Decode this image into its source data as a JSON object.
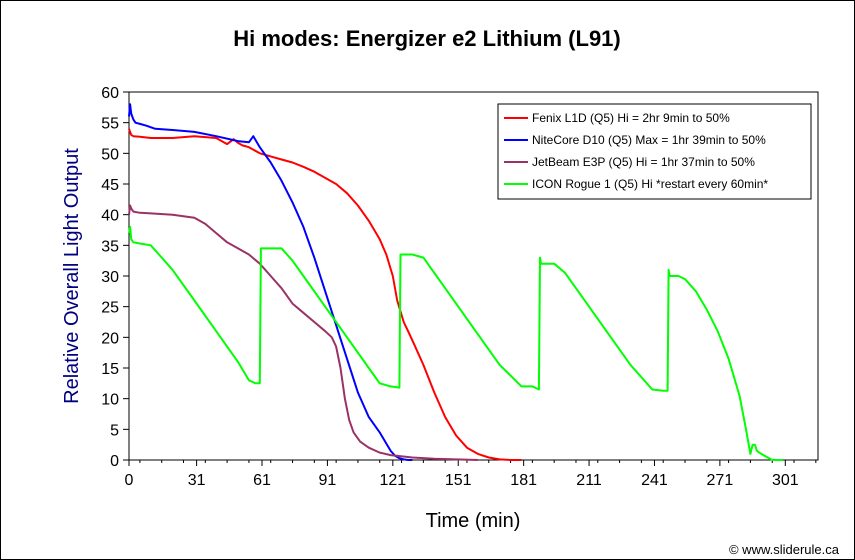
{
  "chart_data": {
    "type": "line",
    "title": "Hi modes: Energizer e2 Lithium (L91)",
    "xlabel": "Time (min)",
    "ylabel": "Relative Overall Light Output",
    "xlim": [
      0,
      316
    ],
    "ylim": [
      0,
      60
    ],
    "x_ticks": [
      "0",
      "31",
      "61",
      "91",
      "121",
      "151",
      "181",
      "211",
      "241",
      "271",
      "301"
    ],
    "y_ticks": [
      "0",
      "5",
      "10",
      "15",
      "20",
      "25",
      "30",
      "35",
      "40",
      "45",
      "50",
      "55",
      "60"
    ],
    "grid": false,
    "legend_position": "top-right",
    "credit": "© www.sliderule.ca",
    "series": [
      {
        "name": "Fenix L1D (Q5) Hi = 2hr 9min to 50%",
        "color": "#ff0000",
        "x": [
          0,
          1,
          2,
          5,
          10,
          20,
          30,
          40,
          45,
          48,
          50,
          52,
          55,
          60,
          65,
          70,
          75,
          80,
          85,
          90,
          95,
          100,
          105,
          110,
          115,
          118,
          121,
          123,
          126,
          128,
          130,
          135,
          140,
          145,
          150,
          155,
          160,
          165,
          170,
          175,
          180
        ],
        "y": [
          54.0,
          53.0,
          52.8,
          52.7,
          52.5,
          52.5,
          52.8,
          52.5,
          51.5,
          52.3,
          51.7,
          51.3,
          51.0,
          50.0,
          49.5,
          49.0,
          48.5,
          47.8,
          47.0,
          46.0,
          45.0,
          43.5,
          41.5,
          39.0,
          36.0,
          33.5,
          30.0,
          26.0,
          22.5,
          21.0,
          19.5,
          15.5,
          11.0,
          7.0,
          4.0,
          2.0,
          1.0,
          0.4,
          0.1,
          0.0,
          0.0
        ]
      },
      {
        "name": "NiteCore D10 (Q5) Max = 1hr 39min to 50%",
        "color": "#0000ff",
        "x": [
          0,
          0.5,
          1,
          2,
          3,
          5,
          8,
          12,
          20,
          30,
          40,
          50,
          55,
          57,
          60,
          65,
          70,
          75,
          80,
          85,
          90,
          95,
          100,
          105,
          110,
          115,
          120,
          122,
          124,
          126,
          128,
          130
        ],
        "y": [
          56.0,
          58.0,
          56.5,
          55.5,
          55.0,
          54.8,
          54.5,
          54.0,
          53.8,
          53.5,
          52.8,
          52.0,
          51.8,
          52.8,
          51.0,
          48.5,
          45.5,
          42.0,
          38.0,
          33.0,
          27.5,
          22.0,
          16.5,
          11.0,
          7.0,
          4.5,
          1.5,
          0.7,
          0.3,
          0.1,
          0.0,
          0.0
        ]
      },
      {
        "name": "JetBeam E3P (Q5) Hi = 1hr 37min to 50%",
        "color": "#993366",
        "x": [
          0,
          0.5,
          1,
          2,
          5,
          10,
          20,
          30,
          35,
          40,
          45,
          50,
          55,
          60,
          65,
          70,
          75,
          80,
          85,
          90,
          93,
          95,
          97,
          99,
          101,
          103,
          106,
          110,
          115,
          120,
          130,
          140,
          150,
          160
        ],
        "y": [
          40.0,
          41.5,
          41.0,
          40.5,
          40.3,
          40.2,
          40.0,
          39.5,
          38.5,
          37.0,
          35.5,
          34.5,
          33.5,
          32.0,
          30.0,
          28.0,
          25.5,
          24.0,
          22.5,
          21.0,
          20.0,
          18.5,
          15.0,
          10.0,
          6.5,
          4.5,
          3.0,
          2.0,
          1.2,
          0.8,
          0.4,
          0.2,
          0.1,
          0.0
        ]
      },
      {
        "name": "ICON Rogue 1 (Q5) Hi *restart every 60min*",
        "color": "#00ff00",
        "x": [
          0,
          0.5,
          1,
          2,
          5,
          10,
          20,
          30,
          40,
          50,
          55,
          58,
          60,
          60.5,
          61,
          62,
          65,
          70,
          75,
          80,
          90,
          100,
          110,
          115,
          120,
          124,
          124.5,
          125,
          128,
          130,
          135,
          140,
          150,
          160,
          170,
          180,
          185,
          188,
          188.5,
          189,
          192,
          195,
          200,
          210,
          220,
          230,
          240,
          245,
          247,
          247.5,
          248,
          252,
          255,
          260,
          265,
          270,
          275,
          280,
          283,
          285,
          286,
          287,
          287.5,
          288,
          290,
          295,
          300
        ],
        "y": [
          37.0,
          38.0,
          36.0,
          35.5,
          35.3,
          35.0,
          31.0,
          26.0,
          21.0,
          16.0,
          13.0,
          12.5,
          12.5,
          34.5,
          34.5,
          34.5,
          34.5,
          34.5,
          32.5,
          30.0,
          25.0,
          20.0,
          15.0,
          12.5,
          12.0,
          11.8,
          33.5,
          33.5,
          33.5,
          33.5,
          33.0,
          30.5,
          25.5,
          20.5,
          15.5,
          12.0,
          12.0,
          11.5,
          33.0,
          32.0,
          32.0,
          32.0,
          30.5,
          25.5,
          20.5,
          15.5,
          11.5,
          11.3,
          11.3,
          31.0,
          30.0,
          30.0,
          29.5,
          27.5,
          24.5,
          21.0,
          16.5,
          10.5,
          5.0,
          1.0,
          2.5,
          2.5,
          2.0,
          1.5,
          1.0,
          0.0,
          0.0
        ]
      }
    ]
  }
}
